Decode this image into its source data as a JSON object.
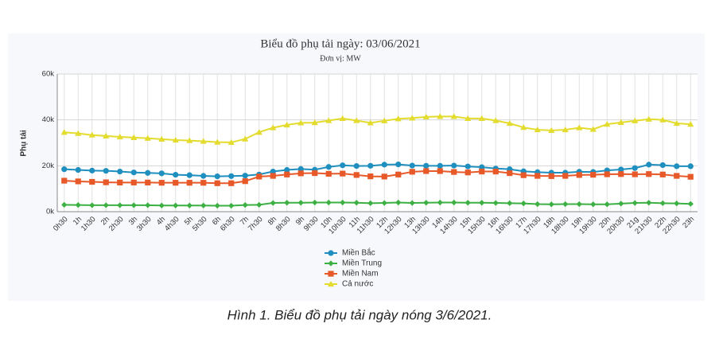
{
  "chart_data": {
    "type": "line",
    "title": "Biểu đồ phụ tải ngày: 03/06/2021",
    "subtitle": "Đơn vị: MW",
    "y_label": "Phụ tải",
    "categories": [
      "0h30",
      "1h",
      "1h30",
      "2h",
      "2h30",
      "3h",
      "3h30",
      "4h",
      "4h30",
      "5h",
      "5h30",
      "6h",
      "6h30",
      "7h",
      "7h30",
      "8h",
      "8h30",
      "9h",
      "9h30",
      "10h",
      "10h30",
      "11h",
      "11h30",
      "12h",
      "12h30",
      "13h",
      "13h30",
      "14h",
      "14h30",
      "15h",
      "15h30",
      "16h",
      "16h30",
      "17h",
      "17h30",
      "18h",
      "18h30",
      "19h",
      "19h30",
      "20h",
      "20h30",
      "21g",
      "21h30",
      "22h",
      "22h30",
      "23h"
    ],
    "series": [
      {
        "name": "Miền Bắc",
        "color": "#1f8fbf",
        "marker": "circle",
        "values": [
          18500,
          18200,
          17900,
          17800,
          17500,
          17100,
          16900,
          16700,
          16100,
          15900,
          15600,
          15400,
          15500,
          15700,
          16200,
          17500,
          18200,
          18600,
          18300,
          19500,
          20200,
          19900,
          20000,
          20500,
          20600,
          20100,
          20000,
          20000,
          20100,
          19700,
          19400,
          18800,
          18500,
          17600,
          17200,
          17000,
          17000,
          17400,
          17300,
          18000,
          18400,
          19000,
          20500,
          20300,
          19800,
          19800
        ]
      },
      {
        "name": "Miền Trung",
        "color": "#3cb043",
        "marker": "diamond",
        "values": [
          3000,
          2900,
          2800,
          2800,
          2800,
          2800,
          2800,
          2700,
          2700,
          2700,
          2700,
          2600,
          2600,
          2900,
          3000,
          3800,
          3900,
          3900,
          4000,
          4000,
          4000,
          3900,
          3700,
          3800,
          4000,
          3800,
          3900,
          4000,
          4000,
          3900,
          3900,
          3800,
          3700,
          3600,
          3300,
          3200,
          3300,
          3300,
          3200,
          3200,
          3500,
          3800,
          3900,
          3700,
          3600,
          3400
        ]
      },
      {
        "name": "Miền Nam",
        "color": "#e8592a",
        "marker": "square",
        "values": [
          13500,
          13200,
          13000,
          12800,
          12700,
          12700,
          12700,
          12600,
          12600,
          12600,
          12600,
          12400,
          12400,
          13300,
          15300,
          15600,
          16200,
          16700,
          16800,
          16500,
          16600,
          16000,
          15400,
          15300,
          16200,
          17400,
          17700,
          17700,
          17300,
          17100,
          17500,
          17500,
          16800,
          15900,
          15600,
          15500,
          15600,
          16000,
          16100,
          16300,
          16400,
          16300,
          16400,
          16200,
          15600,
          15200
        ]
      },
      {
        "name": "Cả nước",
        "color": "#e3dc2e",
        "marker": "triangle",
        "values": [
          34600,
          34100,
          33400,
          33000,
          32600,
          32300,
          32000,
          31600,
          31200,
          31000,
          30700,
          30300,
          30200,
          31700,
          34600,
          36600,
          37800,
          38700,
          38800,
          39700,
          40600,
          39700,
          38700,
          39600,
          40500,
          40800,
          41300,
          41500,
          41500,
          40600,
          40600,
          39700,
          38500,
          36700,
          35700,
          35400,
          35700,
          36600,
          35900,
          38100,
          38900,
          39600,
          40300,
          40000,
          38500,
          38100
        ]
      }
    ],
    "ylim": [
      0,
      60000
    ],
    "yticks": [
      {
        "value": 0,
        "label": "0k"
      },
      {
        "value": 20000,
        "label": "20k"
      },
      {
        "value": 40000,
        "label": "40k"
      },
      {
        "value": 60000,
        "label": "60k"
      }
    ],
    "grid": true
  },
  "caption": "Hình 1. Biểu đồ phụ tải ngày nóng 3/6/2021."
}
